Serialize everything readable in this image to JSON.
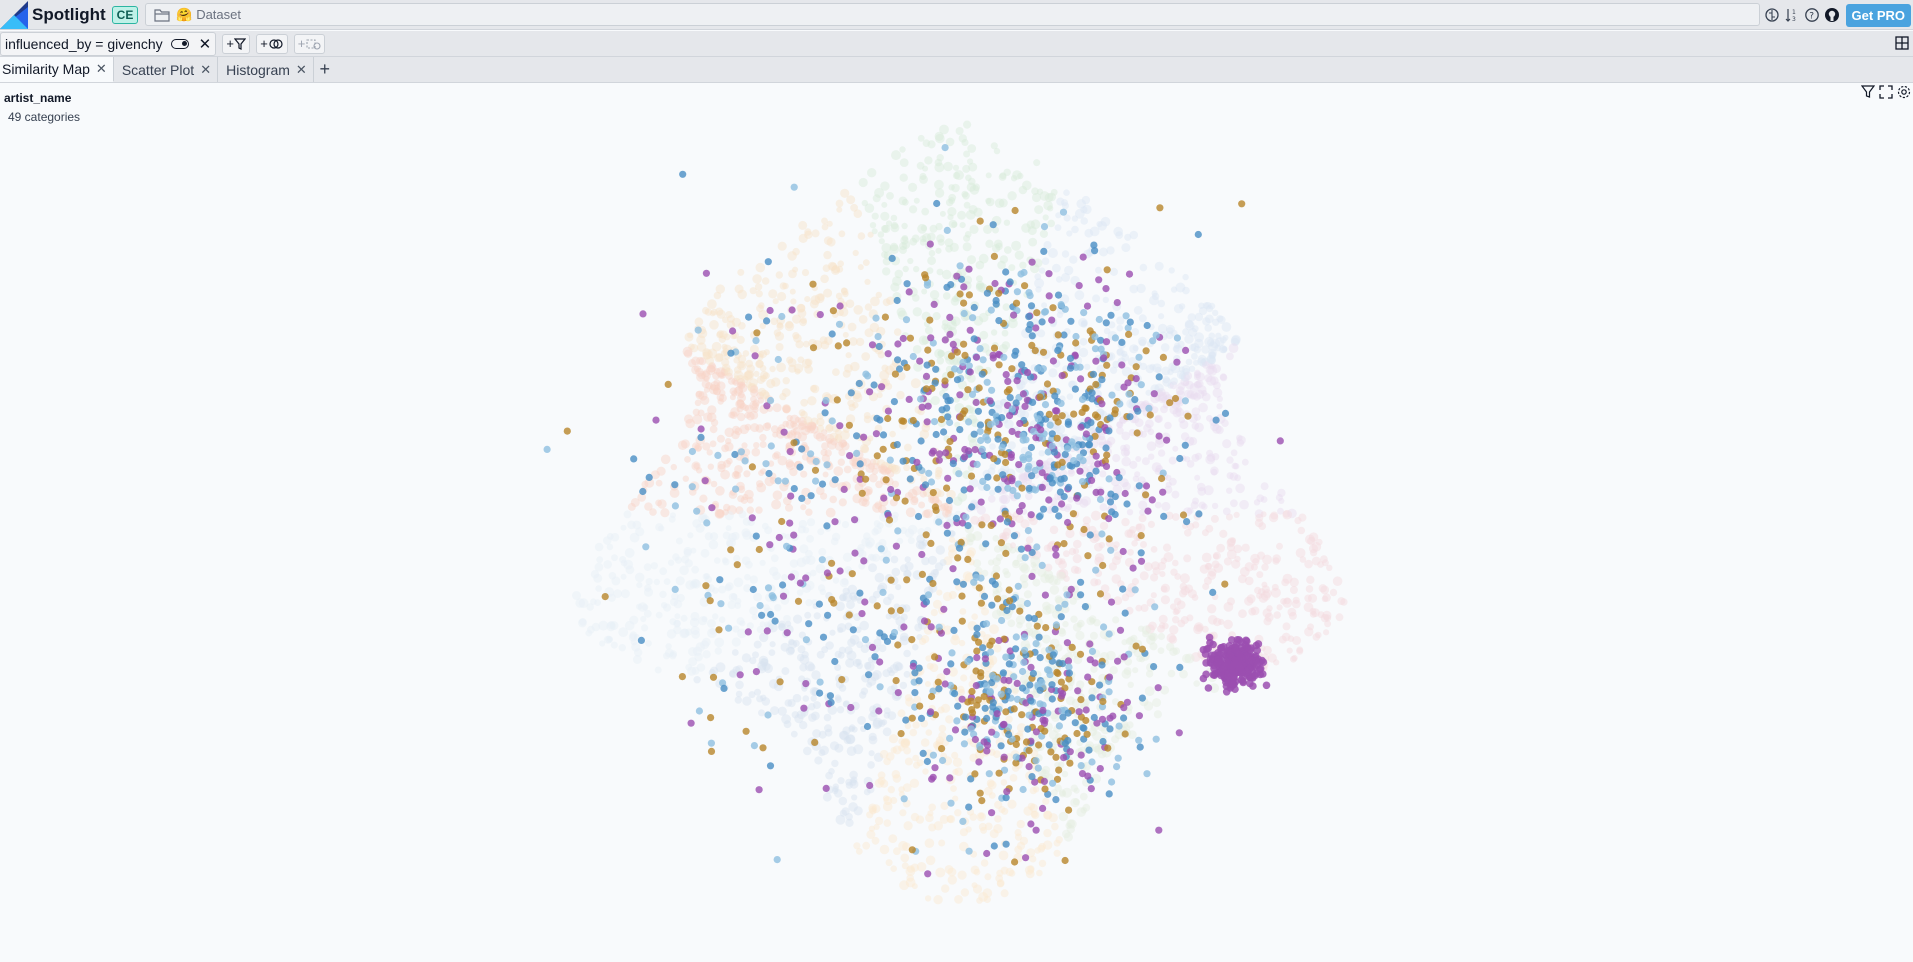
{
  "header": {
    "brand": "Spotlight",
    "edition": "CE",
    "dataset_emoji": "🤗",
    "dataset_label": "Dataset",
    "get_pro_label": "Get PRO"
  },
  "filter": {
    "expression": "influenced_by = givenchy",
    "add_filter_label": "+",
    "add_similarity_label": "+",
    "add_disabled_label": "+"
  },
  "tabs": [
    {
      "label": "Similarity Map",
      "active": true
    },
    {
      "label": "Scatter Plot",
      "active": false
    },
    {
      "label": "Histogram",
      "active": false
    }
  ],
  "legend": {
    "title": "artist_name",
    "count": "49 categories"
  },
  "colors": {
    "purple": "#9b4fb0",
    "gold": "#b8862a",
    "blue": "#4a8fc4",
    "lightblue": "#8fbfe0",
    "accent": "#4aa3df"
  }
}
